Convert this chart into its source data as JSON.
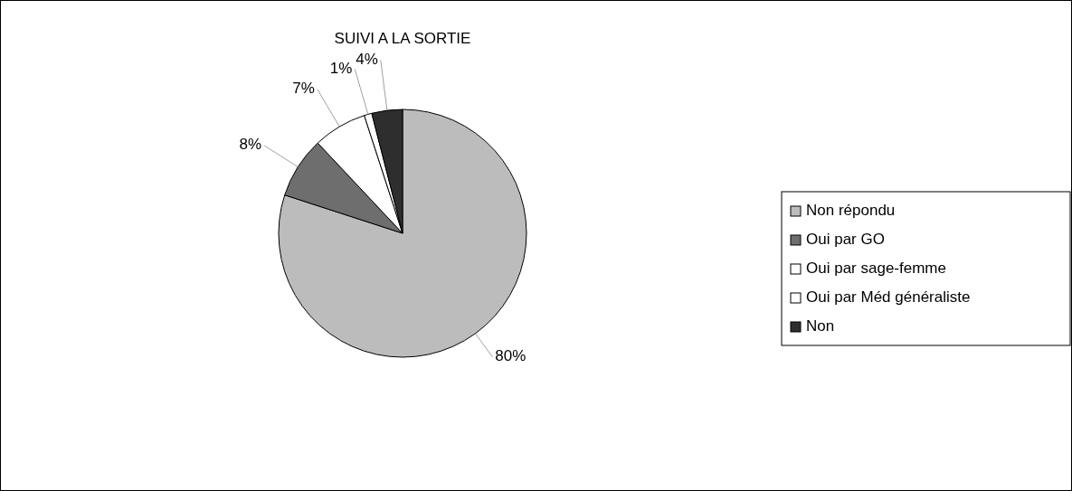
{
  "chart_data": {
    "type": "pie",
    "title": "SUIVI A LA SORTIE",
    "categories": [
      "Non répondu",
      "Oui par GO",
      "Oui par sage-femme",
      "Oui par Méd généraliste",
      "Non"
    ],
    "values": [
      80,
      8,
      7,
      1,
      4
    ],
    "value_labels": [
      "80%",
      "8%",
      "7%",
      "1%",
      "4%"
    ],
    "colors": [
      "#bcbcbc",
      "#6e6e6e",
      "#ffffff",
      "#ffffff",
      "#2e2e2e"
    ],
    "legend": "right"
  }
}
